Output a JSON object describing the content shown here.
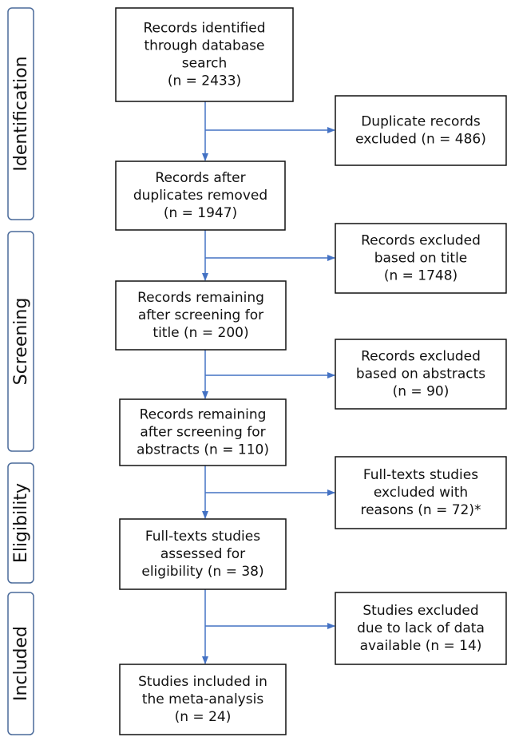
{
  "stages": [
    "Identification",
    "Screening",
    "Eligibility",
    "Included"
  ],
  "boxes": [
    {
      "lines": [
        "Records identified",
        "through database",
        "search",
        "(n = 2433)"
      ]
    },
    {
      "lines": [
        "Records after",
        "duplicates removed",
        "(n = 1947)"
      ]
    },
    {
      "lines": [
        "Records remaining",
        "after screening for",
        "title (n = 200)"
      ]
    },
    {
      "lines": [
        "Records remaining",
        "after screening for",
        "abstracts (n = 110)"
      ]
    },
    {
      "lines": [
        "Full-texts studies",
        "assessed for",
        "eligibility (n = 38)"
      ]
    },
    {
      "lines": [
        "Studies included in",
        "the meta-analysis",
        "(n = 24)"
      ]
    }
  ],
  "excluded": [
    {
      "lines": [
        "Duplicate records",
        "excluded (n = 486)"
      ]
    },
    {
      "lines": [
        "Records excluded",
        "based on title",
        "(n = 1748)"
      ]
    },
    {
      "lines": [
        "Records excluded",
        "based on abstracts",
        "(n = 90)"
      ]
    },
    {
      "lines": [
        "Full-texts studies",
        "excluded with",
        "reasons (n = 72)*"
      ]
    },
    {
      "lines": [
        "Studies excluded",
        "due to lack of data",
        "available (n = 14)"
      ]
    }
  ]
}
